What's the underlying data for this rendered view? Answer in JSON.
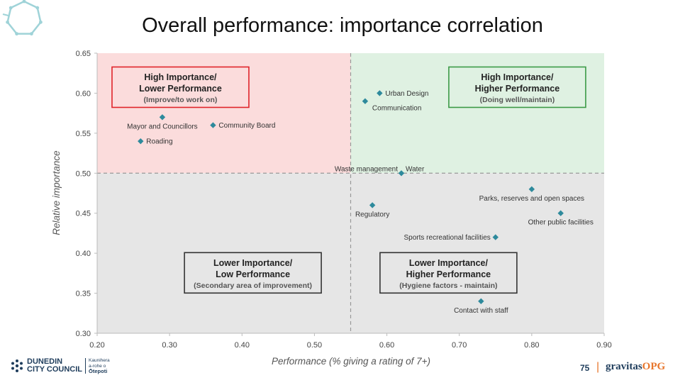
{
  "title": "Overall performance: importance correlation",
  "page_number": "75",
  "brand": {
    "council_line1": "DUNEDIN",
    "council_line2": "CITY COUNCIL",
    "maori_line1": "Kaunihera",
    "maori_line2": "a-rohe o",
    "maori_line3": "Ōtepoti",
    "separator": "|",
    "firm_name": "gravitas",
    "firm_suffix": "OPG"
  },
  "colors": {
    "marker": "#2e8a9c",
    "quadrant_top_left": "#fbdcdc",
    "quadrant_top_right": "#dff1e2",
    "quadrant_bottom": "#e6e6e6",
    "box_red": "#e0242a",
    "box_green": "#3c9a46",
    "box_dark": "#333333",
    "logo_teal": "#9fd3d8"
  },
  "chart_data": {
    "type": "scatter",
    "title": "Overall performance: importance correlation",
    "xlabel": "Performance (% giving a rating of 7+)",
    "ylabel": "Relative importance",
    "xlim": [
      0.2,
      0.9
    ],
    "ylim": [
      0.3,
      0.65
    ],
    "xticks": [
      0.2,
      0.3,
      0.4,
      0.5,
      0.6,
      0.7,
      0.8,
      0.9
    ],
    "yticks": [
      0.3,
      0.35,
      0.4,
      0.45,
      0.5,
      0.55,
      0.6,
      0.65
    ],
    "tick_format_decimals": 2,
    "grid": false,
    "divider_x": 0.55,
    "divider_y": 0.5,
    "points": [
      {
        "label": "Urban Design",
        "x": 0.59,
        "y": 0.6,
        "label_pos": "right"
      },
      {
        "label": "Communication",
        "x": 0.57,
        "y": 0.59,
        "label_pos": "below-right"
      },
      {
        "label": "Mayor and Councillors",
        "x": 0.29,
        "y": 0.57,
        "label_pos": "below"
      },
      {
        "label": "Community Board",
        "x": 0.36,
        "y": 0.56,
        "label_pos": "right"
      },
      {
        "label": "Roading",
        "x": 0.26,
        "y": 0.54,
        "label_pos": "right"
      },
      {
        "label": "Water",
        "x": 0.62,
        "y": 0.5,
        "label_pos": "upper-right"
      },
      {
        "label": "Waste management",
        "x": 0.62,
        "y": 0.5,
        "label_pos": "upper-left"
      },
      {
        "label": "Parks, reserves and open spaces",
        "x": 0.8,
        "y": 0.48,
        "label_pos": "below"
      },
      {
        "label": "Regulatory",
        "x": 0.58,
        "y": 0.46,
        "label_pos": "below"
      },
      {
        "label": "Other public facilities",
        "x": 0.84,
        "y": 0.45,
        "label_pos": "below"
      },
      {
        "label": "Sports recreational facilities",
        "x": 0.75,
        "y": 0.42,
        "label_pos": "left"
      },
      {
        "label": "Contact with staff",
        "x": 0.73,
        "y": 0.34,
        "label_pos": "below"
      }
    ],
    "quadrant_boxes": [
      {
        "line1": "High Importance/",
        "line2": "Lower Performance",
        "line3": "(Improve/to work on)",
        "border": "red",
        "x_center": 0.315,
        "y_center": 0.6075
      },
      {
        "line1": "High Importance/",
        "line2": "Higher Performance",
        "line3": "(Doing well/maintain)",
        "border": "green",
        "x_center": 0.78,
        "y_center": 0.6075
      },
      {
        "line1": "Lower Importance/",
        "line2": "Low Performance",
        "line3": "(Secondary area of improvement)",
        "border": "dark",
        "x_center": 0.415,
        "y_center": 0.3755
      },
      {
        "line1": "Lower Importance/",
        "line2": "Higher Performance",
        "line3": "(Hygiene factors - maintain)",
        "border": "dark",
        "x_center": 0.685,
        "y_center": 0.3755
      }
    ]
  }
}
